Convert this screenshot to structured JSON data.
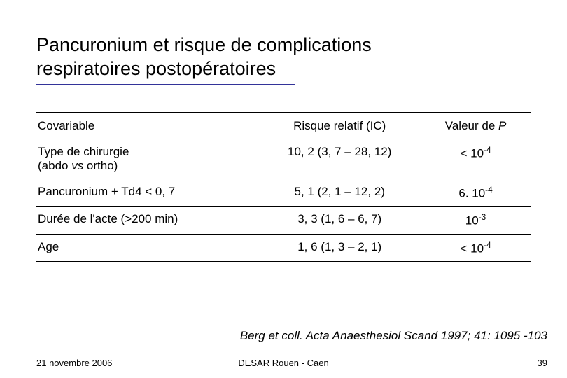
{
  "colors": {
    "background": "#ffffff",
    "text": "#000000",
    "title_underline": "#333399",
    "table_border": "#000000"
  },
  "typography": {
    "font_family": "Verdana, Geneva, sans-serif",
    "title_fontsize": 27,
    "body_fontsize": 17,
    "footer_fontsize": 13
  },
  "title": {
    "line1": "Pancuronium et risque de complications",
    "line2": "respiratoires postopératoires"
  },
  "table": {
    "type": "table",
    "columns": [
      {
        "label": "Covariable",
        "align": "left"
      },
      {
        "label": "Risque relatif (IC)",
        "align": "center"
      },
      {
        "label_prefix": "Valeur de ",
        "label_italic": "P",
        "align": "center"
      }
    ],
    "rows": [
      {
        "covariable_main": "Type de chirurgie",
        "covariable_sub_pre": "(abdo ",
        "covariable_sub_italic": "vs",
        "covariable_sub_post": " ortho)",
        "rr": "10, 2 (3, 7 – 28, 12)",
        "p_pre": "< 10",
        "p_sup": "-4"
      },
      {
        "covariable_main": "Pancuronium + Td4 < 0, 7",
        "rr": "5, 1 (2, 1 – 12, 2)",
        "p_pre": "6. 10",
        "p_sup": "-4"
      },
      {
        "covariable_main": "Durée de l'acte (>200 min)",
        "rr": "3, 3 (1, 6 – 6, 7)",
        "p_pre": "10",
        "p_sup": "-3"
      },
      {
        "covariable_main": "Age",
        "rr": "1, 6 (1, 3 – 2, 1)",
        "p_pre": "< 10",
        "p_sup": "-4"
      }
    ]
  },
  "citation": "Berg et coll. Acta Anaesthesiol Scand 1997; 41: 1095 -103",
  "footer": {
    "date": "21 novembre 2006",
    "center": "DESAR Rouen - Caen",
    "page": "39"
  }
}
